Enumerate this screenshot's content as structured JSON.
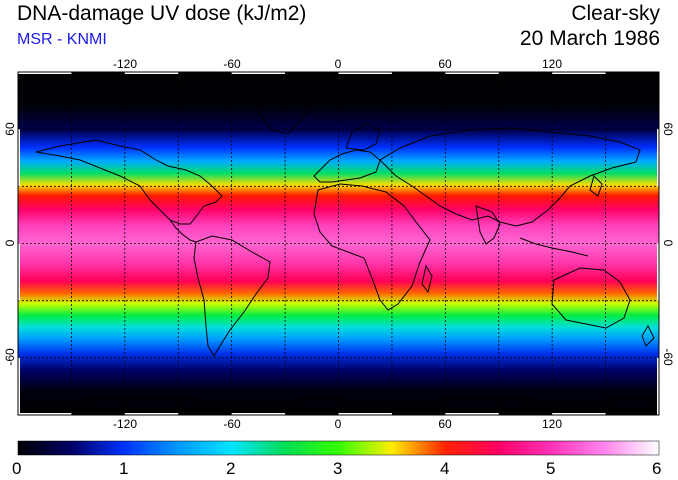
{
  "header": {
    "title": "DNA-damage UV dose (kJ/m2)",
    "subtitle": "MSR - KNMI",
    "condition": "Clear-sky",
    "date": "20 March 1986"
  },
  "map": {
    "projection": "equirectangular",
    "lon_range": [
      -180,
      180
    ],
    "lat_range": [
      -90,
      90
    ],
    "lon_ticks": [
      "-120",
      "-60",
      "0",
      "60",
      "120"
    ],
    "lat_ticks": [
      "60",
      "0",
      "-60"
    ],
    "lon_grid_step_deg": 30,
    "lat_grid_step_deg": 30,
    "coastline_color": "#000000"
  },
  "colorbar": {
    "min": 0,
    "max": 6,
    "tick_labels": [
      "0",
      "1",
      "2",
      "3",
      "4",
      "5",
      "6"
    ],
    "stops": [
      {
        "value": 0.0,
        "color": "#000000"
      },
      {
        "value": 0.5,
        "color": "#000066"
      },
      {
        "value": 1.0,
        "color": "#0033ff"
      },
      {
        "value": 1.5,
        "color": "#0099ff"
      },
      {
        "value": 2.0,
        "color": "#00e5ff"
      },
      {
        "value": 2.5,
        "color": "#00dd55"
      },
      {
        "value": 3.0,
        "color": "#33ff00"
      },
      {
        "value": 3.5,
        "color": "#ffee00"
      },
      {
        "value": 4.0,
        "color": "#ff2200"
      },
      {
        "value": 4.5,
        "color": "#ff0066"
      },
      {
        "value": 5.0,
        "color": "#ff33bb"
      },
      {
        "value": 5.5,
        "color": "#ff88ee"
      },
      {
        "value": 6.0,
        "color": "#ffffff"
      }
    ]
  }
}
